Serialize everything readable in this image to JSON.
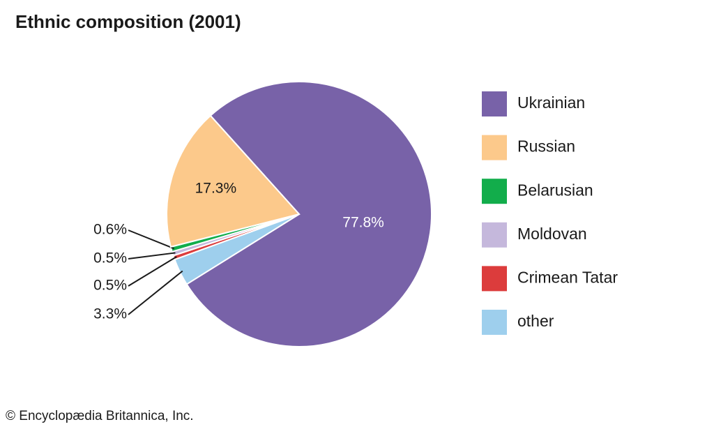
{
  "chart_data": {
    "type": "pie",
    "title": "Ethnic composition (2001)",
    "categories": [
      "Ukrainian",
      "Russian",
      "Belarusian",
      "Moldovan",
      "Crimean Tatar",
      "other"
    ],
    "values": [
      77.8,
      17.3,
      0.6,
      0.5,
      0.5,
      3.3
    ],
    "value_labels": [
      "77.8%",
      "17.3%",
      "0.6%",
      "0.5%",
      "0.5%",
      "3.3%"
    ],
    "colors": [
      "#7862a8",
      "#fcc98b",
      "#12ad4b",
      "#c5b8dc",
      "#dc3c3c",
      "#9ecfed"
    ],
    "legend": "right",
    "credit": "© Encyclopædia Britannica, Inc."
  }
}
